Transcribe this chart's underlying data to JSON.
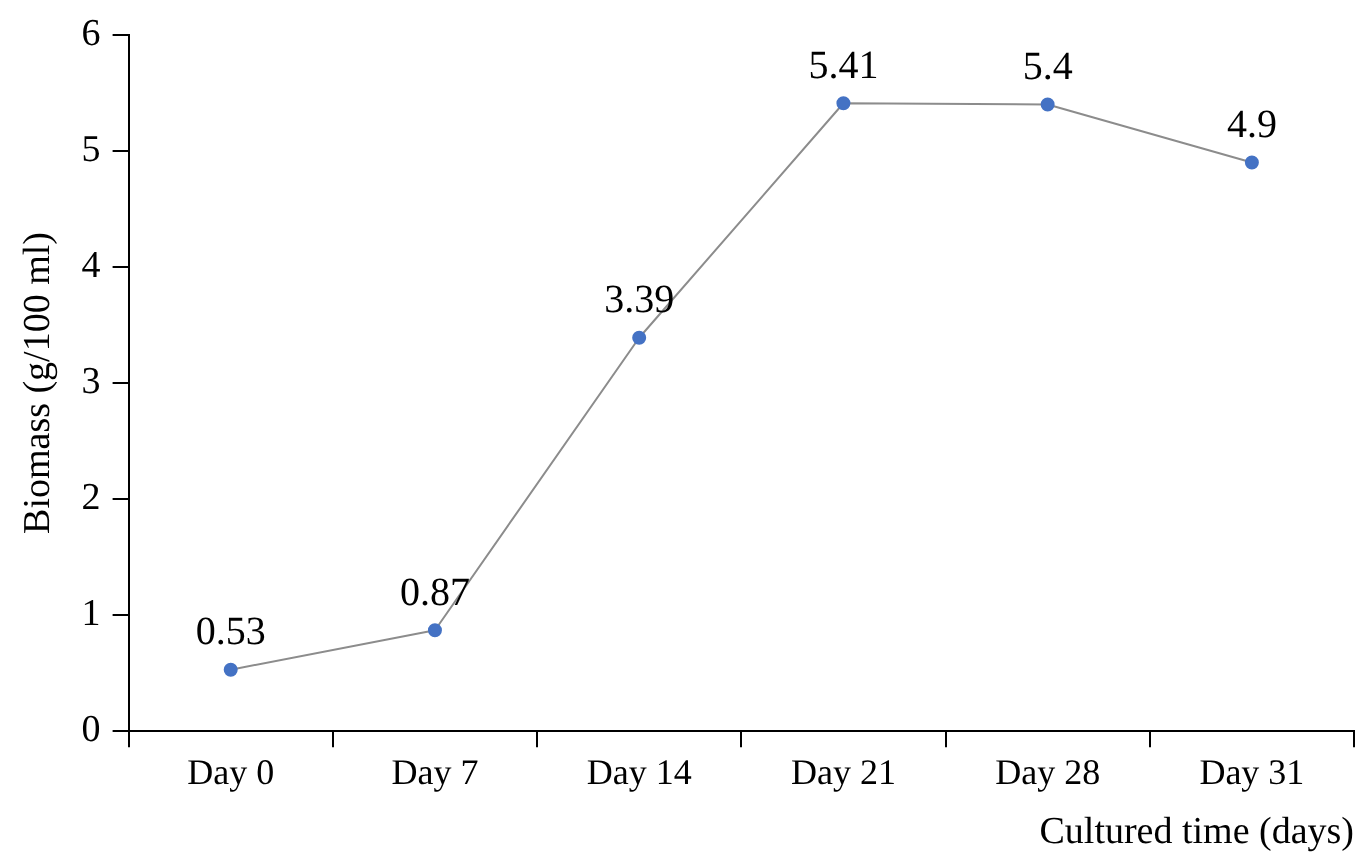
{
  "chart_data": {
    "type": "line",
    "xlabel": "Cultured time (days)",
    "ylabel": "Biomass (g/100 ml)",
    "categories": [
      "Day 0",
      "Day 7",
      "Day 14",
      "Day 21",
      "Day 28",
      "Day 31"
    ],
    "series": [
      {
        "color": "#4472c4",
        "values": [
          0.53,
          0.87,
          3.39,
          5.41,
          5.4,
          4.9
        ]
      }
    ],
    "ylim": [
      0,
      6
    ],
    "yticks": [
      0,
      1,
      2,
      3,
      4,
      5,
      6
    ],
    "grid": false,
    "legend": false,
    "marker": "circle",
    "line_style": "solid",
    "data_labels": true
  }
}
